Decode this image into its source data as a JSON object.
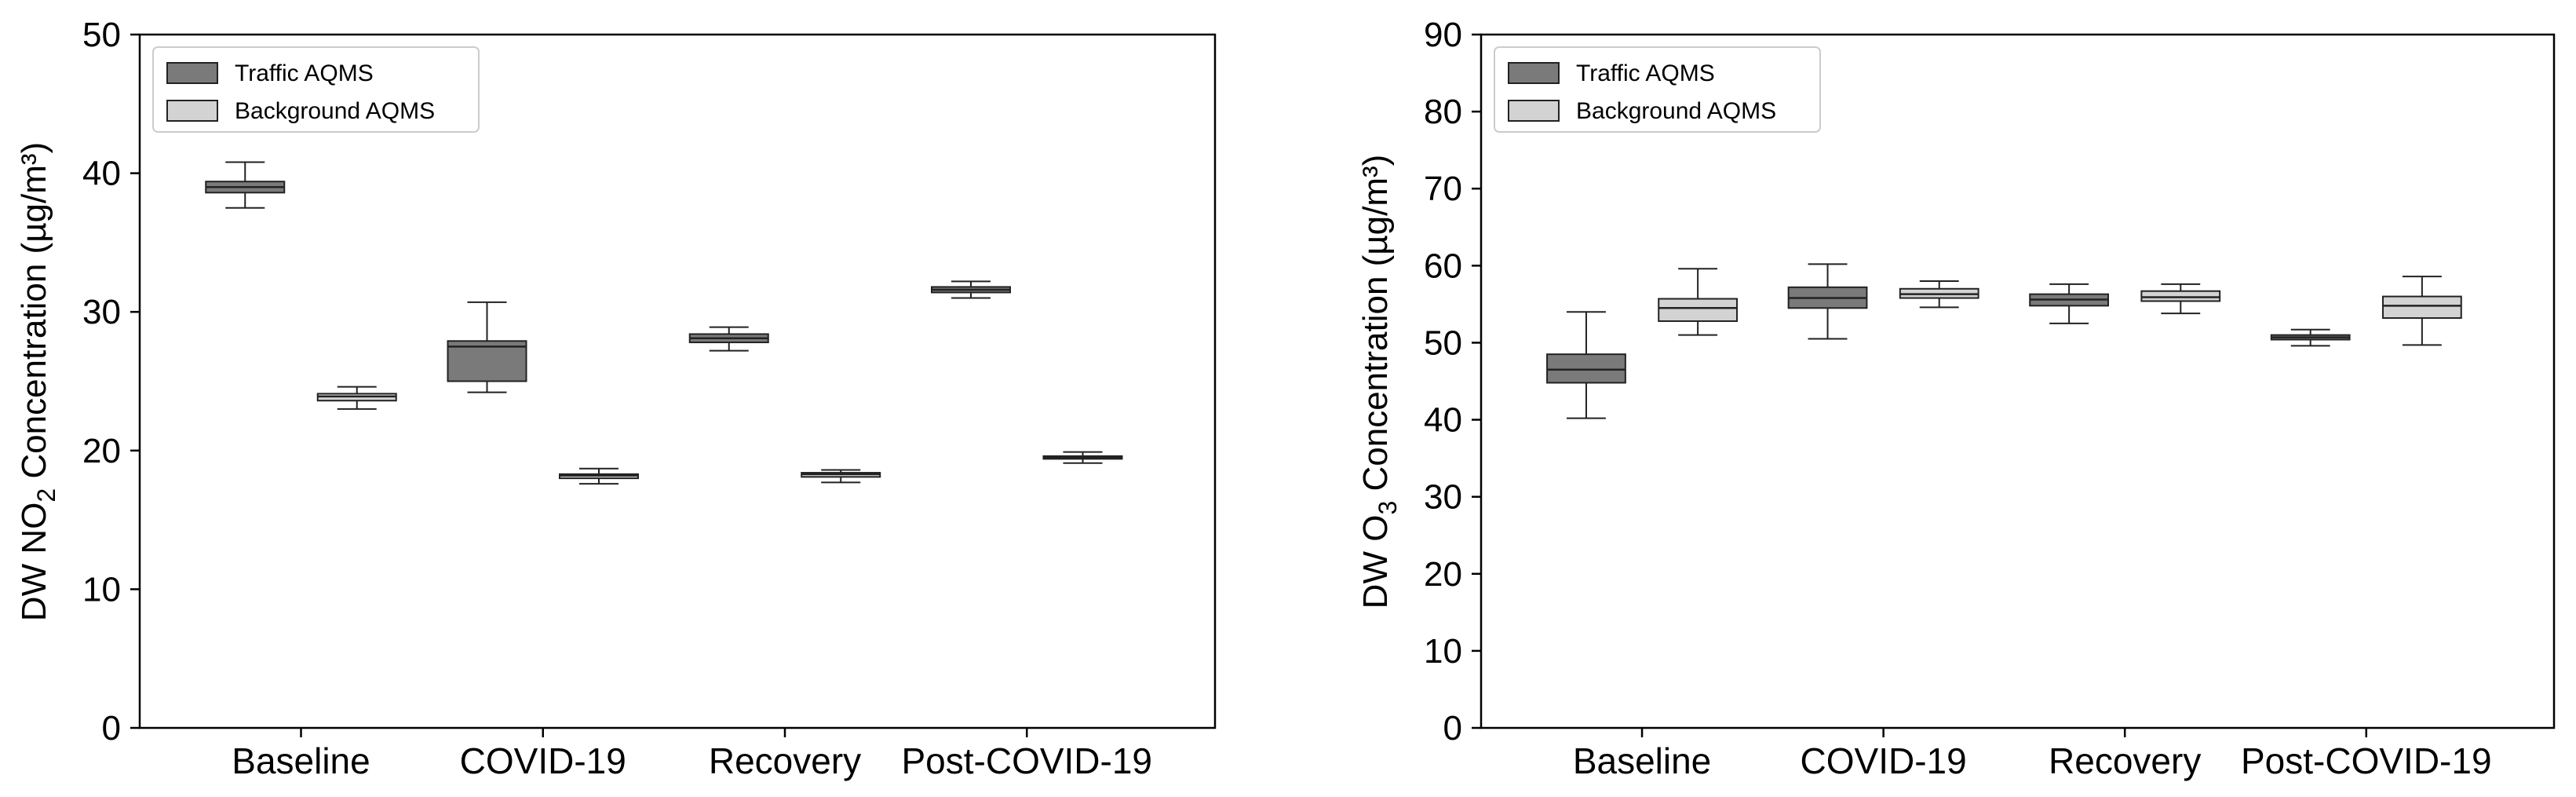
{
  "chart_data": [
    {
      "type": "box",
      "title": "",
      "xlabel": "",
      "ylabel": {
        "prefix": "DW NO",
        "sub": "2",
        "suffix": " Concentration (µg/m³)"
      },
      "ylim": [
        0,
        50
      ],
      "yticks": [
        0,
        10,
        20,
        30,
        40,
        50
      ],
      "grid": false,
      "legend_position": "top-left",
      "categories": [
        "Baseline",
        "COVID-19",
        "Recovery",
        "Post-COVID-19"
      ],
      "series": [
        {
          "name": "Traffic AQMS",
          "color": "#7a7a7a",
          "boxes": [
            {
              "min": 37.5,
              "q1": 38.6,
              "median": 39.0,
              "q3": 39.4,
              "max": 40.8
            },
            {
              "min": 24.2,
              "q1": 25.0,
              "median": 27.5,
              "q3": 27.9,
              "max": 30.7
            },
            {
              "min": 27.2,
              "q1": 27.8,
              "median": 28.1,
              "q3": 28.4,
              "max": 28.9
            },
            {
              "min": 31.0,
              "q1": 31.4,
              "median": 31.6,
              "q3": 31.8,
              "max": 32.2
            }
          ]
        },
        {
          "name": "Background AQMS",
          "color": "#d3d3d3",
          "boxes": [
            {
              "min": 23.0,
              "q1": 23.6,
              "median": 23.9,
              "q3": 24.1,
              "max": 24.6
            },
            {
              "min": 17.6,
              "q1": 18.0,
              "median": 18.2,
              "q3": 18.3,
              "max": 18.7
            },
            {
              "min": 17.7,
              "q1": 18.1,
              "median": 18.3,
              "q3": 18.4,
              "max": 18.6
            },
            {
              "min": 19.1,
              "q1": 19.4,
              "median": 19.5,
              "q3": 19.6,
              "max": 19.9
            }
          ]
        }
      ]
    },
    {
      "type": "box",
      "title": "",
      "xlabel": "",
      "ylabel": {
        "prefix": "DW O",
        "sub": "3",
        "suffix": " Concentration (µg/m³)"
      },
      "ylim": [
        0,
        90
      ],
      "yticks": [
        0,
        10,
        20,
        30,
        40,
        50,
        60,
        70,
        80,
        90
      ],
      "grid": false,
      "legend_position": "top-left",
      "categories": [
        "Baseline",
        "COVID-19",
        "Recovery",
        "Post-COVID-19"
      ],
      "series": [
        {
          "name": "Traffic AQMS",
          "color": "#7a7a7a",
          "boxes": [
            {
              "min": 40.2,
              "q1": 44.8,
              "median": 46.5,
              "q3": 48.5,
              "max": 54.0
            },
            {
              "min": 50.5,
              "q1": 54.5,
              "median": 55.8,
              "q3": 57.2,
              "max": 60.2
            },
            {
              "min": 52.5,
              "q1": 54.8,
              "median": 55.6,
              "q3": 56.3,
              "max": 57.6
            },
            {
              "min": 49.6,
              "q1": 50.4,
              "median": 50.7,
              "q3": 51.0,
              "max": 51.7
            }
          ]
        },
        {
          "name": "Background AQMS",
          "color": "#d3d3d3",
          "boxes": [
            {
              "min": 51.0,
              "q1": 52.8,
              "median": 54.5,
              "q3": 55.7,
              "max": 59.6
            },
            {
              "min": 54.6,
              "q1": 55.8,
              "median": 56.3,
              "q3": 57.0,
              "max": 58.0
            },
            {
              "min": 53.8,
              "q1": 55.4,
              "median": 55.9,
              "q3": 56.7,
              "max": 57.6
            },
            {
              "min": 49.7,
              "q1": 53.2,
              "median": 54.8,
              "q3": 56.0,
              "max": 58.6
            }
          ]
        }
      ]
    }
  ]
}
